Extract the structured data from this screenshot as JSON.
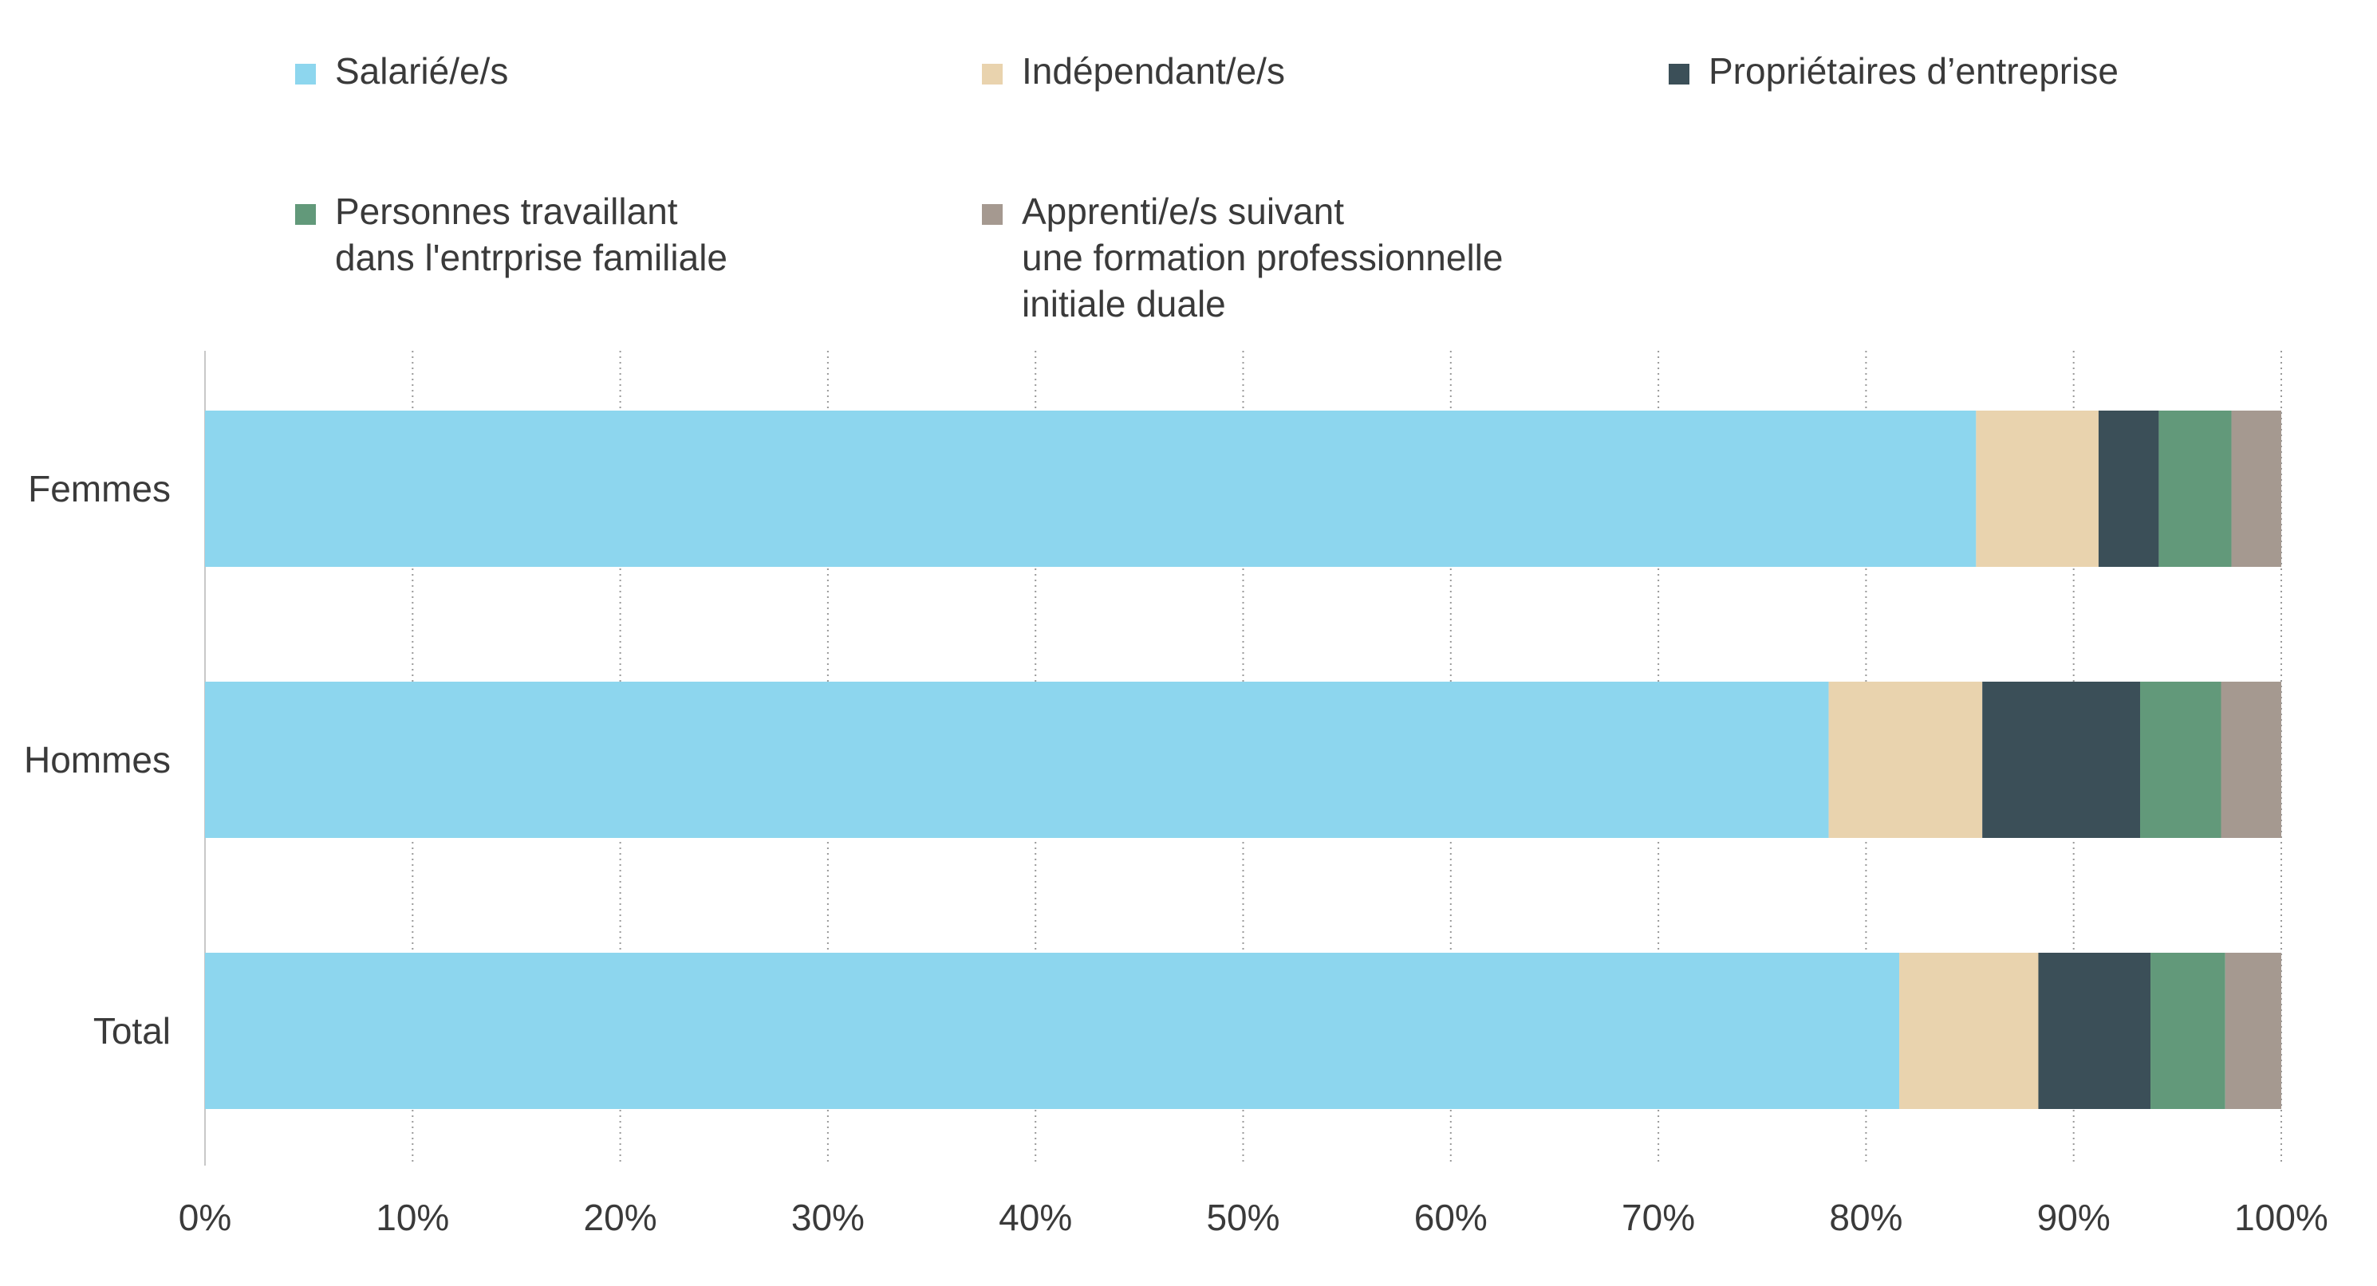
{
  "chart_data": {
    "type": "bar",
    "orientation": "horizontal",
    "stacked": true,
    "percent": true,
    "categories": [
      "Femmes",
      "Hommes",
      "Total"
    ],
    "series": [
      {
        "name": "Salarié/e/s",
        "color": "#8dd6ee",
        "values": [
          85.3,
          78.2,
          81.6
        ]
      },
      {
        "name": "Indépendant/e/s",
        "color": "#e9d3ae",
        "values": [
          5.9,
          7.4,
          6.7
        ]
      },
      {
        "name": "Propriétaires d’entreprise",
        "color": "#3b4f58",
        "values": [
          2.9,
          7.6,
          5.4
        ]
      },
      {
        "name": "Personnes travaillant\ndans l'entrprise familiale",
        "color": "#62997a",
        "values": [
          3.5,
          3.9,
          3.6
        ]
      },
      {
        "name": "Apprenti/e/s suivant\nune formation professionnelle\ninitiale duale",
        "color": "#a59990",
        "values": [
          2.4,
          2.9,
          2.7
        ]
      }
    ],
    "xlim": [
      0,
      100
    ],
    "xticks": [
      "0%",
      "10%",
      "20%",
      "30%",
      "40%",
      "50%",
      "60%",
      "70%",
      "80%",
      "90%",
      "100%"
    ],
    "grid": "vertical dotted",
    "legend": "top"
  }
}
